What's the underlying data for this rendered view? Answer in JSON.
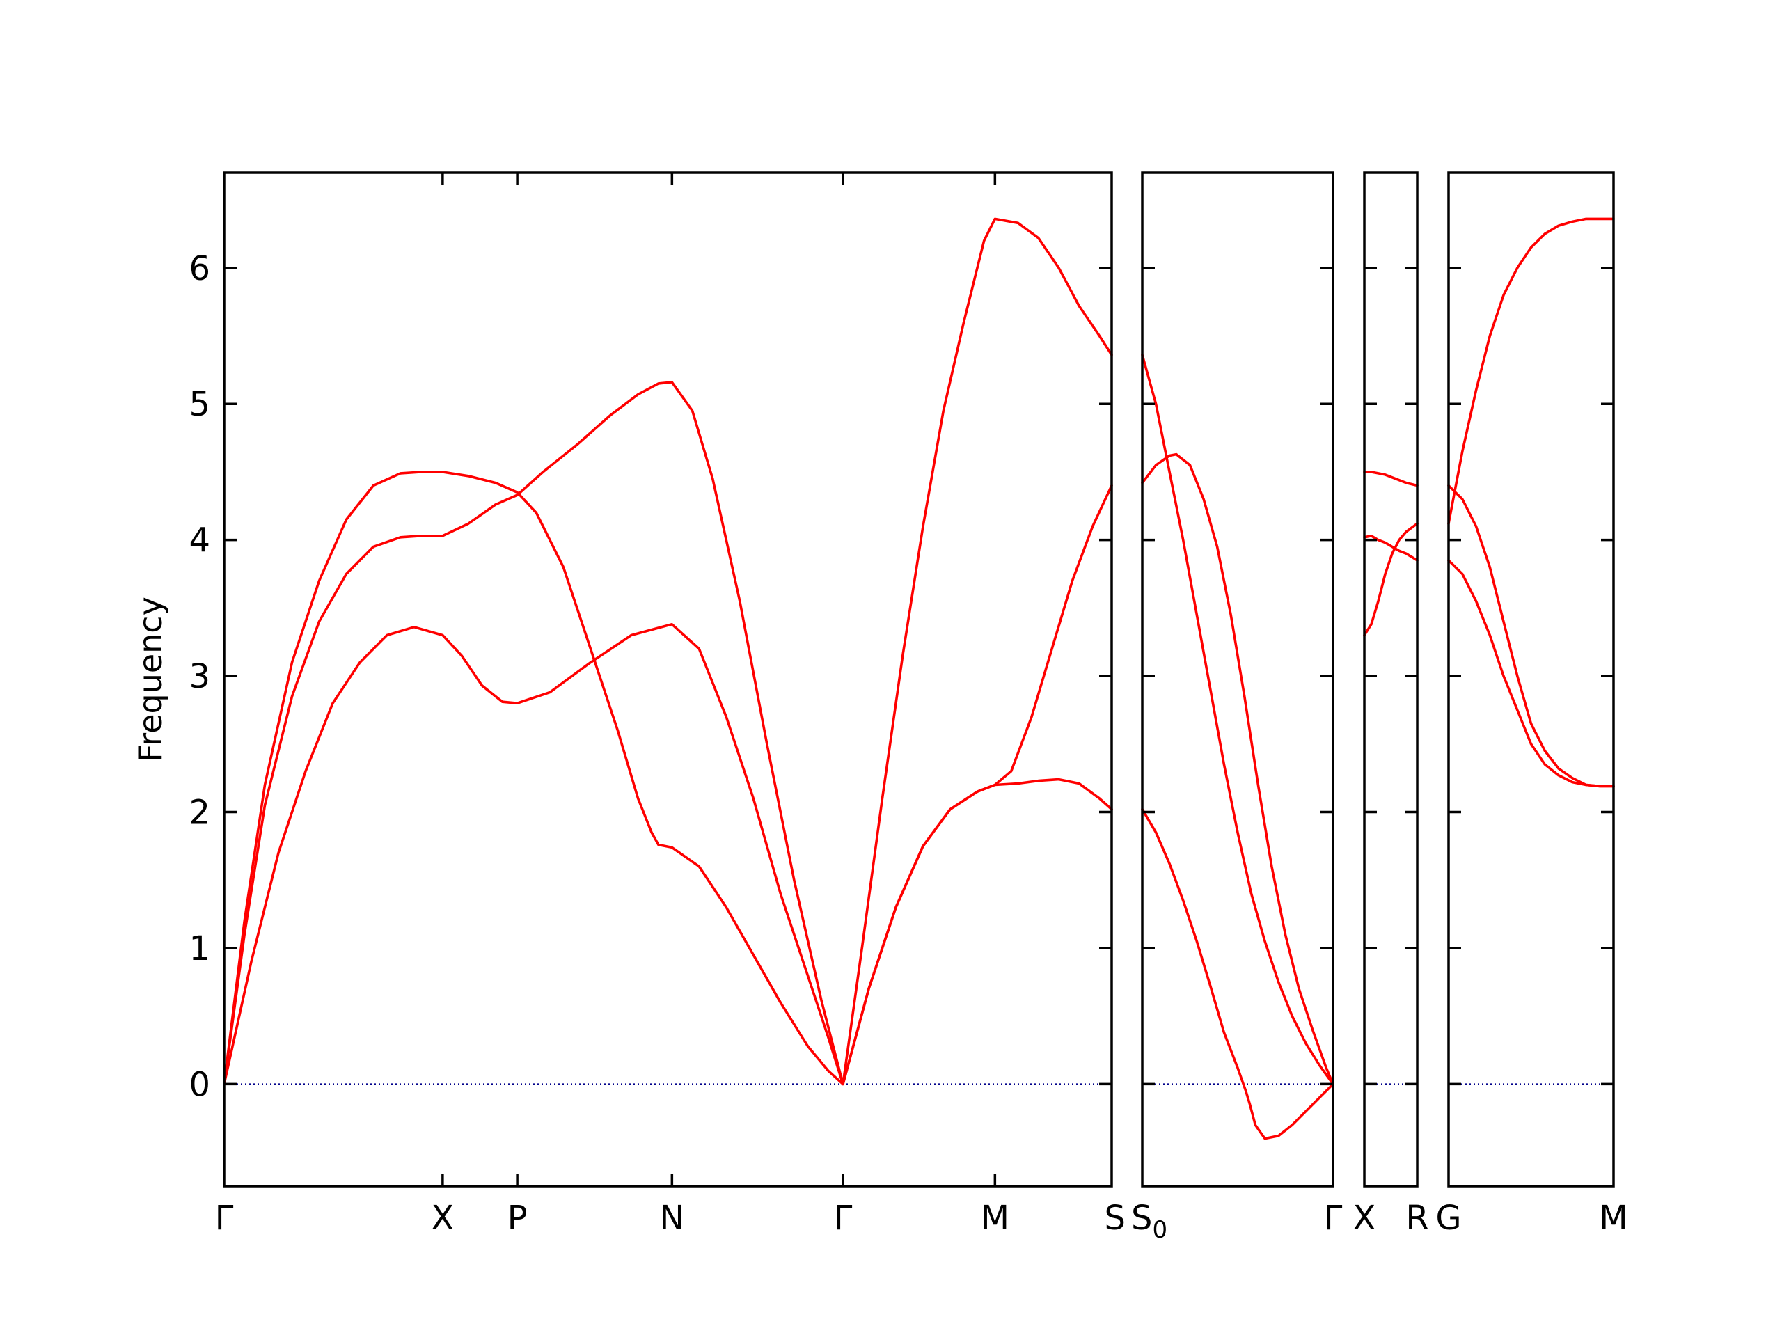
{
  "chart_data": {
    "type": "line",
    "title": "",
    "ylabel": "Frequency",
    "xlabel": "",
    "ylim": [
      -0.75,
      6.7
    ],
    "y_ticks": [
      0,
      1,
      2,
      3,
      4,
      5,
      6
    ],
    "grid": false,
    "legend": "none",
    "colors": {
      "bands": "#ff0000",
      "zero_line": "#00008b",
      "frame": "#000000"
    },
    "panels": [
      {
        "name": "Γ-X-P-N-Γ-M-S",
        "x_range": [
          0,
          6.54
        ],
        "high_symmetry_points": [
          {
            "label": "Γ",
            "x": 0
          },
          {
            "label": "X",
            "x": 1.61
          },
          {
            "label": "P",
            "x": 2.16
          },
          {
            "label": "N",
            "x": 3.3
          },
          {
            "label": "Γ",
            "x": 4.56
          },
          {
            "label": "M",
            "x": 5.68
          },
          {
            "label": "S",
            "x": 6.54
          }
        ],
        "bands": [
          {
            "points": [
              [
                0,
                0
              ],
              [
                0.2,
                0.9
              ],
              [
                0.4,
                1.7
              ],
              [
                0.6,
                2.3
              ],
              [
                0.8,
                2.8
              ],
              [
                1.0,
                3.1
              ],
              [
                1.2,
                3.3
              ],
              [
                1.4,
                3.36
              ],
              [
                1.61,
                3.3
              ],
              [
                1.75,
                3.15
              ],
              [
                1.9,
                2.93
              ],
              [
                2.05,
                2.81
              ],
              [
                2.16,
                2.8
              ],
              [
                2.4,
                2.88
              ],
              [
                2.7,
                3.1
              ],
              [
                3.0,
                3.3
              ],
              [
                3.3,
                3.38
              ],
              [
                3.5,
                3.2
              ],
              [
                3.7,
                2.7
              ],
              [
                3.9,
                2.1
              ],
              [
                4.1,
                1.4
              ],
              [
                4.3,
                0.8
              ],
              [
                4.45,
                0.35
              ],
              [
                4.56,
                0
              ],
              [
                4.75,
                0.7
              ],
              [
                4.95,
                1.3
              ],
              [
                5.15,
                1.75
              ],
              [
                5.35,
                2.02
              ],
              [
                5.55,
                2.15
              ],
              [
                5.68,
                2.2
              ],
              [
                5.85,
                2.21
              ],
              [
                6.0,
                2.23
              ],
              [
                6.15,
                2.24
              ],
              [
                6.3,
                2.21
              ],
              [
                6.45,
                2.1
              ],
              [
                6.54,
                2.02
              ]
            ]
          },
          {
            "points": [
              [
                0,
                0
              ],
              [
                0.15,
                1.1
              ],
              [
                0.3,
                2.05
              ],
              [
                0.5,
                2.85
              ],
              [
                0.7,
                3.4
              ],
              [
                0.9,
                3.75
              ],
              [
                1.1,
                3.95
              ],
              [
                1.3,
                4.02
              ],
              [
                1.45,
                4.03
              ],
              [
                1.61,
                4.03
              ],
              [
                1.8,
                4.12
              ],
              [
                2.0,
                4.26
              ],
              [
                2.16,
                4.33
              ],
              [
                2.35,
                4.5
              ],
              [
                2.6,
                4.7
              ],
              [
                2.85,
                4.92
              ],
              [
                3.05,
                5.07
              ],
              [
                3.2,
                5.15
              ],
              [
                3.3,
                5.16
              ],
              [
                3.45,
                4.95
              ],
              [
                3.6,
                4.45
              ],
              [
                3.8,
                3.55
              ],
              [
                4.0,
                2.5
              ],
              [
                4.2,
                1.5
              ],
              [
                4.4,
                0.62
              ],
              [
                4.56,
                0
              ],
              [
                4.7,
                1.0
              ],
              [
                4.85,
                2.1
              ],
              [
                5.0,
                3.15
              ],
              [
                5.15,
                4.1
              ],
              [
                5.3,
                4.95
              ],
              [
                5.45,
                5.6
              ],
              [
                5.6,
                6.2
              ],
              [
                5.68,
                6.36
              ],
              [
                5.85,
                6.33
              ],
              [
                6.0,
                6.22
              ],
              [
                6.15,
                6.0
              ],
              [
                6.3,
                5.72
              ],
              [
                6.45,
                5.5
              ],
              [
                6.54,
                5.36
              ]
            ]
          },
          {
            "points": [
              [
                0,
                0
              ],
              [
                0.15,
                1.2
              ],
              [
                0.3,
                2.2
              ],
              [
                0.5,
                3.1
              ],
              [
                0.7,
                3.7
              ],
              [
                0.9,
                4.15
              ],
              [
                1.1,
                4.4
              ],
              [
                1.3,
                4.49
              ],
              [
                1.45,
                4.5
              ],
              [
                1.61,
                4.5
              ],
              [
                1.8,
                4.47
              ],
              [
                2.0,
                4.42
              ],
              [
                2.16,
                4.35
              ],
              [
                2.3,
                4.2
              ],
              [
                2.5,
                3.8
              ],
              [
                2.7,
                3.2
              ],
              [
                2.9,
                2.6
              ],
              [
                3.05,
                2.1
              ],
              [
                3.15,
                1.85
              ],
              [
                3.2,
                1.76
              ],
              [
                3.3,
                1.74
              ],
              [
                3.5,
                1.6
              ],
              [
                3.7,
                1.3
              ],
              [
                3.9,
                0.95
              ],
              [
                4.1,
                0.6
              ],
              [
                4.3,
                0.28
              ],
              [
                4.45,
                0.1
              ],
              [
                4.56,
                0
              ],
              [
                4.75,
                0.7
              ],
              [
                4.95,
                1.3
              ],
              [
                5.15,
                1.75
              ],
              [
                5.35,
                2.02
              ],
              [
                5.55,
                2.15
              ],
              [
                5.68,
                2.2
              ],
              [
                5.8,
                2.3
              ],
              [
                5.95,
                2.7
              ],
              [
                6.1,
                3.2
              ],
              [
                6.25,
                3.7
              ],
              [
                6.4,
                4.1
              ],
              [
                6.54,
                4.4
              ]
            ]
          }
        ]
      },
      {
        "name": "S0-Γ",
        "x_range": [
          0,
          1.4
        ],
        "high_symmetry_points": [
          {
            "label": "S0",
            "x": 0
          },
          {
            "label": "Γ",
            "x": 1.4
          }
        ],
        "bands": [
          {
            "points": [
              [
                0,
                2.02
              ],
              [
                0.1,
                1.85
              ],
              [
                0.2,
                1.62
              ],
              [
                0.3,
                1.35
              ],
              [
                0.4,
                1.05
              ],
              [
                0.5,
                0.72
              ],
              [
                0.6,
                0.38
              ],
              [
                0.7,
                0.12
              ],
              [
                0.76,
                -0.05
              ],
              [
                0.79,
                -0.15
              ],
              [
                0.83,
                -0.3
              ],
              [
                0.9,
                -0.4
              ],
              [
                1.0,
                -0.38
              ],
              [
                1.1,
                -0.3
              ],
              [
                1.2,
                -0.2
              ],
              [
                1.3,
                -0.1
              ],
              [
                1.4,
                0
              ]
            ]
          },
          {
            "points": [
              [
                0,
                5.36
              ],
              [
                0.1,
                5.0
              ],
              [
                0.2,
                4.5
              ],
              [
                0.3,
                4.0
              ],
              [
                0.4,
                3.45
              ],
              [
                0.5,
                2.9
              ],
              [
                0.6,
                2.35
              ],
              [
                0.7,
                1.85
              ],
              [
                0.8,
                1.4
              ],
              [
                0.9,
                1.05
              ],
              [
                1.0,
                0.75
              ],
              [
                1.1,
                0.5
              ],
              [
                1.2,
                0.3
              ],
              [
                1.3,
                0.14
              ],
              [
                1.4,
                0
              ]
            ]
          },
          {
            "points": [
              [
                0,
                4.42
              ],
              [
                0.1,
                4.55
              ],
              [
                0.2,
                4.62
              ],
              [
                0.25,
                4.63
              ],
              [
                0.35,
                4.55
              ],
              [
                0.45,
                4.3
              ],
              [
                0.55,
                3.95
              ],
              [
                0.65,
                3.45
              ],
              [
                0.75,
                2.85
              ],
              [
                0.85,
                2.2
              ],
              [
                0.95,
                1.6
              ],
              [
                1.05,
                1.1
              ],
              [
                1.15,
                0.7
              ],
              [
                1.25,
                0.4
              ],
              [
                1.35,
                0.12
              ],
              [
                1.4,
                0
              ]
            ]
          }
        ]
      },
      {
        "name": "X-R",
        "x_range": [
          0,
          0.38
        ],
        "high_symmetry_points": [
          {
            "label": "X",
            "x": 0
          },
          {
            "label": "R",
            "x": 0.38
          }
        ],
        "bands": [
          {
            "points": [
              [
                0,
                3.3
              ],
              [
                0.05,
                3.38
              ],
              [
                0.1,
                3.55
              ],
              [
                0.15,
                3.75
              ],
              [
                0.2,
                3.9
              ],
              [
                0.25,
                4.0
              ],
              [
                0.3,
                4.06
              ],
              [
                0.38,
                4.12
              ]
            ]
          },
          {
            "points": [
              [
                0,
                4.02
              ],
              [
                0.05,
                4.03
              ],
              [
                0.1,
                4.0
              ],
              [
                0.15,
                3.98
              ],
              [
                0.2,
                3.95
              ],
              [
                0.25,
                3.92
              ],
              [
                0.3,
                3.9
              ],
              [
                0.38,
                3.85
              ]
            ]
          },
          {
            "points": [
              [
                0,
                4.5
              ],
              [
                0.05,
                4.5
              ],
              [
                0.1,
                4.49
              ],
              [
                0.15,
                4.48
              ],
              [
                0.2,
                4.46
              ],
              [
                0.25,
                4.44
              ],
              [
                0.3,
                4.42
              ],
              [
                0.38,
                4.4
              ]
            ]
          }
        ]
      },
      {
        "name": "G-M",
        "x_range": [
          0,
          1.2
        ],
        "high_symmetry_points": [
          {
            "label": "G",
            "x": 0
          },
          {
            "label": "M",
            "x": 1.2
          }
        ],
        "bands": [
          {
            "points": [
              [
                0,
                4.12
              ],
              [
                0.1,
                4.65
              ],
              [
                0.2,
                5.1
              ],
              [
                0.3,
                5.5
              ],
              [
                0.4,
                5.8
              ],
              [
                0.5,
                6.0
              ],
              [
                0.6,
                6.15
              ],
              [
                0.7,
                6.25
              ],
              [
                0.8,
                6.31
              ],
              [
                0.9,
                6.34
              ],
              [
                1.0,
                6.36
              ],
              [
                1.1,
                6.36
              ],
              [
                1.2,
                6.36
              ]
            ]
          },
          {
            "points": [
              [
                0,
                4.4
              ],
              [
                0.1,
                4.3
              ],
              [
                0.2,
                4.1
              ],
              [
                0.3,
                3.8
              ],
              [
                0.4,
                3.4
              ],
              [
                0.5,
                3.0
              ],
              [
                0.6,
                2.65
              ],
              [
                0.7,
                2.45
              ],
              [
                0.8,
                2.32
              ],
              [
                0.9,
                2.25
              ],
              [
                1.0,
                2.2
              ],
              [
                1.1,
                2.19
              ],
              [
                1.2,
                2.19
              ]
            ]
          },
          {
            "points": [
              [
                0,
                3.85
              ],
              [
                0.1,
                3.75
              ],
              [
                0.2,
                3.55
              ],
              [
                0.3,
                3.3
              ],
              [
                0.4,
                3.0
              ],
              [
                0.5,
                2.75
              ],
              [
                0.6,
                2.5
              ],
              [
                0.7,
                2.35
              ],
              [
                0.8,
                2.27
              ],
              [
                0.9,
                2.22
              ],
              [
                1.0,
                2.2
              ],
              [
                1.1,
                2.19
              ],
              [
                1.2,
                2.19
              ]
            ]
          }
        ]
      }
    ]
  }
}
